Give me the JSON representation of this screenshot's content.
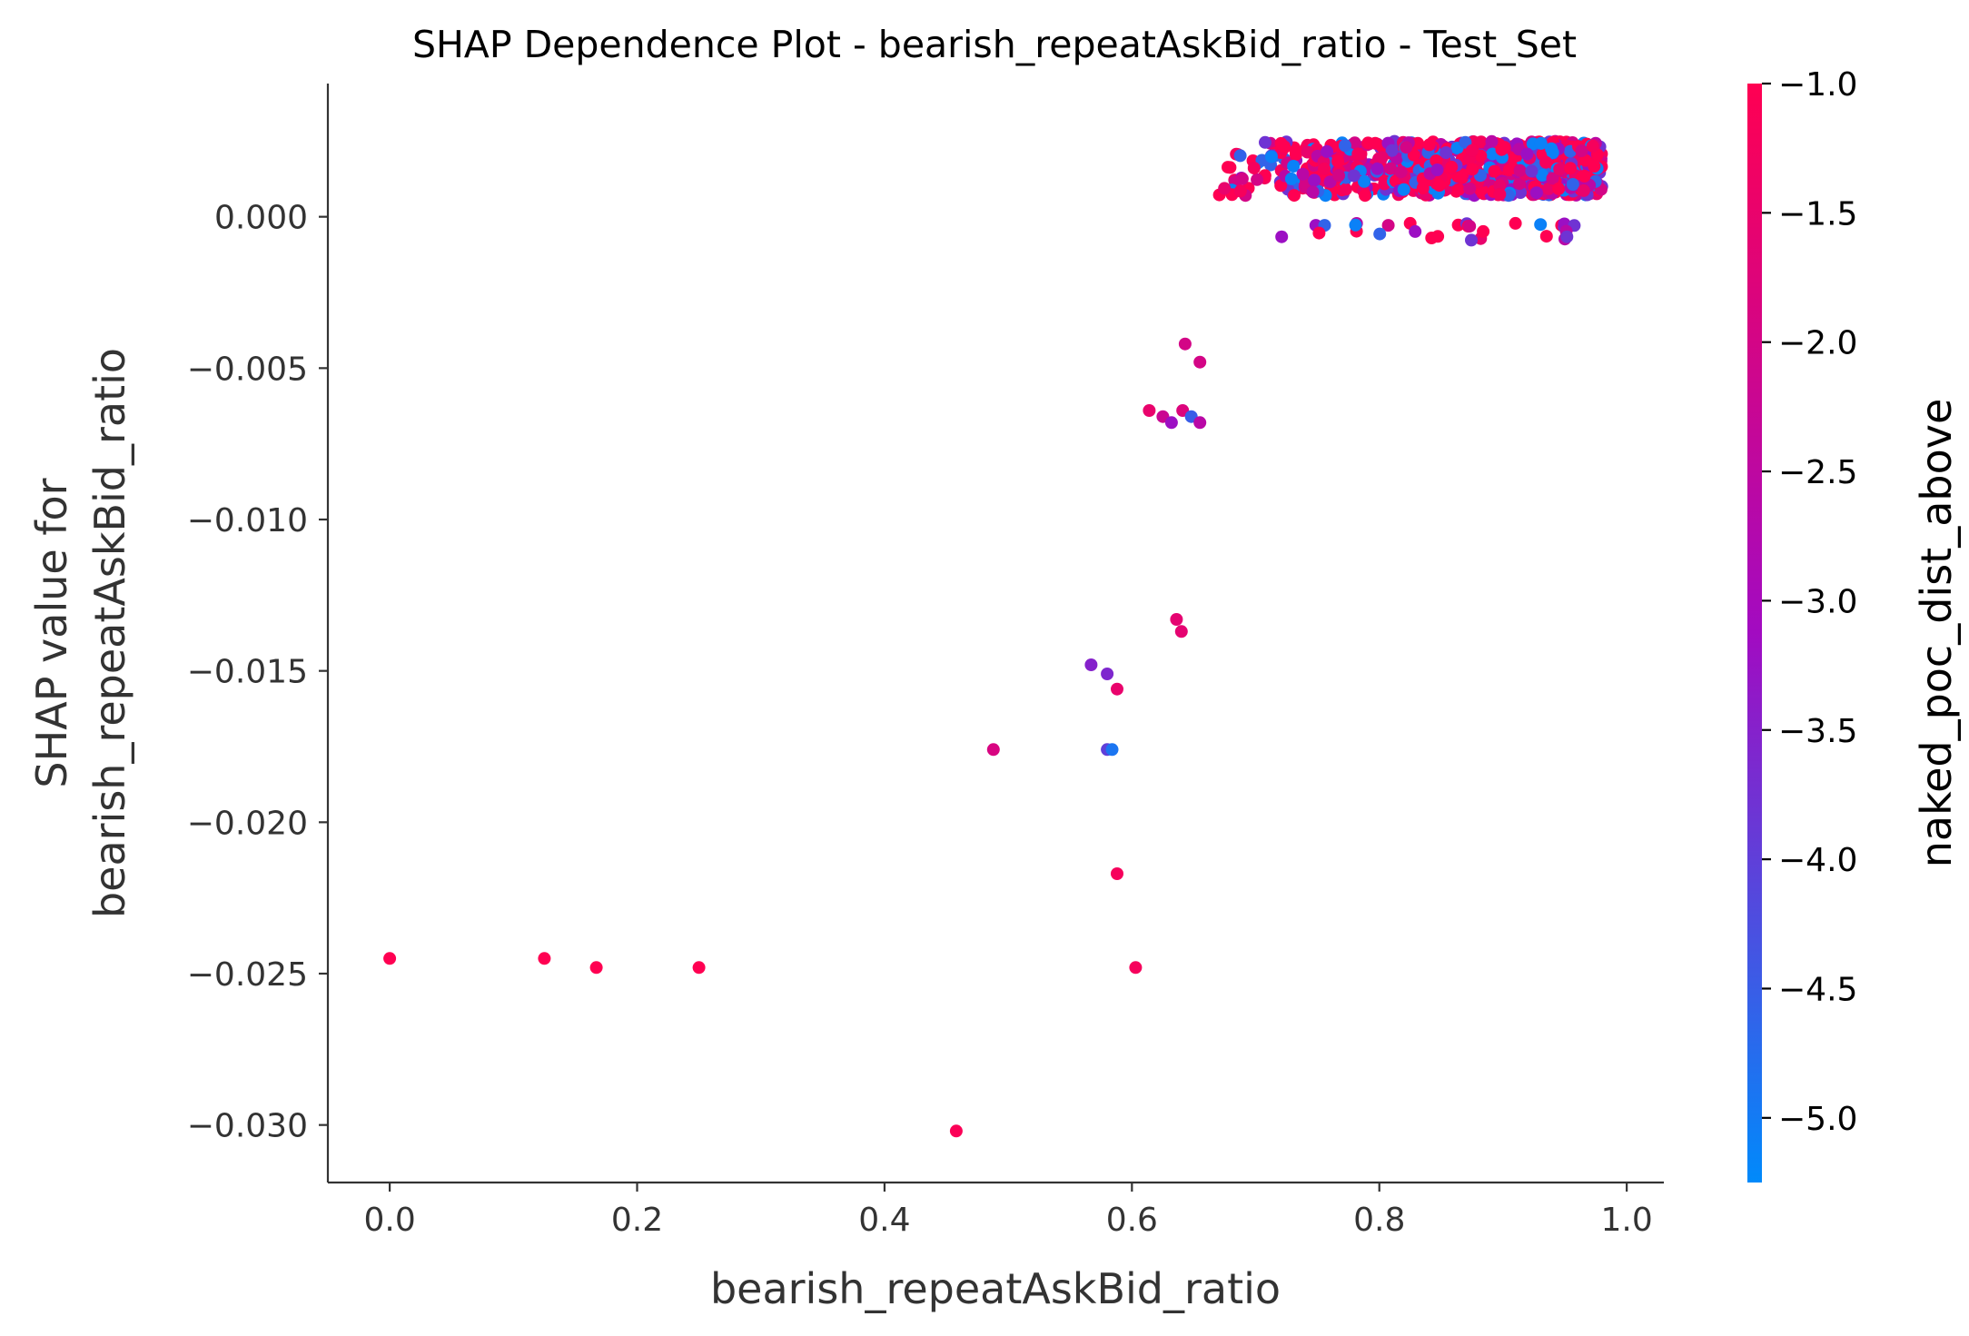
{
  "chart_data": {
    "type": "scatter",
    "title": "SHAP Dependence Plot - bearish_repeatAskBid_ratio - Test_Set",
    "xlabel": "bearish_repeatAskBid_ratio",
    "ylabel_line1": "SHAP value for",
    "ylabel_line2": "bearish_repeatAskBid_ratio",
    "xlim": [
      -0.05,
      1.03
    ],
    "ylim": [
      -0.0319,
      0.0044
    ],
    "xticks": [
      0.0,
      0.2,
      0.4,
      0.6,
      0.8,
      1.0
    ],
    "xtick_labels": [
      "0.0",
      "0.2",
      "0.4",
      "0.6",
      "0.8",
      "1.0"
    ],
    "yticks": [
      0.0,
      -0.005,
      -0.01,
      -0.015,
      -0.02,
      -0.025,
      -0.03
    ],
    "ytick_labels": [
      "0.000",
      "−0.005",
      "−0.010",
      "−0.015",
      "−0.020",
      "−0.025",
      "−0.030"
    ],
    "colorbar": {
      "label": "naked_poc_dist_above",
      "range": [
        -5.25,
        -1.0
      ],
      "ticks": [
        -1.0,
        -1.5,
        -2.0,
        -2.5,
        -3.0,
        -3.5,
        -4.0,
        -4.5,
        -5.0
      ],
      "tick_labels": [
        "−1.0",
        "−1.5",
        "−2.0",
        "−2.5",
        "−3.0",
        "−3.5",
        "−4.0",
        "−4.5",
        "−5.0"
      ],
      "color_low": "#008afb",
      "color_mid": "#a20bc1",
      "color_high": "#ff0052"
    },
    "points": [
      {
        "x": 0.0,
        "y": -0.0245,
        "c": -1.0
      },
      {
        "x": 0.125,
        "y": -0.0245,
        "c": -1.0
      },
      {
        "x": 0.167,
        "y": -0.0248,
        "c": -1.0
      },
      {
        "x": 0.25,
        "y": -0.0248,
        "c": -1.0
      },
      {
        "x": 0.458,
        "y": -0.0302,
        "c": -1.1
      },
      {
        "x": 0.488,
        "y": -0.0176,
        "c": -1.9
      },
      {
        "x": 0.567,
        "y": -0.0148,
        "c": -3.5
      },
      {
        "x": 0.58,
        "y": -0.0151,
        "c": -3.6
      },
      {
        "x": 0.588,
        "y": -0.0156,
        "c": -1.5
      },
      {
        "x": 0.58,
        "y": -0.0176,
        "c": -4.0
      },
      {
        "x": 0.584,
        "y": -0.0176,
        "c": -4.9
      },
      {
        "x": 0.588,
        "y": -0.0217,
        "c": -1.2
      },
      {
        "x": 0.603,
        "y": -0.0248,
        "c": -1.2
      },
      {
        "x": 0.614,
        "y": -0.0064,
        "c": -1.5
      },
      {
        "x": 0.625,
        "y": -0.0066,
        "c": -2.2
      },
      {
        "x": 0.632,
        "y": -0.0068,
        "c": -3.2
      },
      {
        "x": 0.641,
        "y": -0.0064,
        "c": -1.8
      },
      {
        "x": 0.648,
        "y": -0.0066,
        "c": -4.5
      },
      {
        "x": 0.655,
        "y": -0.0068,
        "c": -2.6
      },
      {
        "x": 0.643,
        "y": -0.0042,
        "c": -2.0
      },
      {
        "x": 0.655,
        "y": -0.0048,
        "c": -2.0
      },
      {
        "x": 0.636,
        "y": -0.0133,
        "c": -1.6
      },
      {
        "x": 0.64,
        "y": -0.0137,
        "c": -1.6
      }
    ],
    "cluster": {
      "x_range": [
        0.665,
        0.98
      ],
      "y_range": [
        0.0007,
        0.0025
      ],
      "count": 900,
      "low_points_count": 30,
      "low_y_range": [
        -0.0008,
        -0.0002
      ]
    }
  }
}
